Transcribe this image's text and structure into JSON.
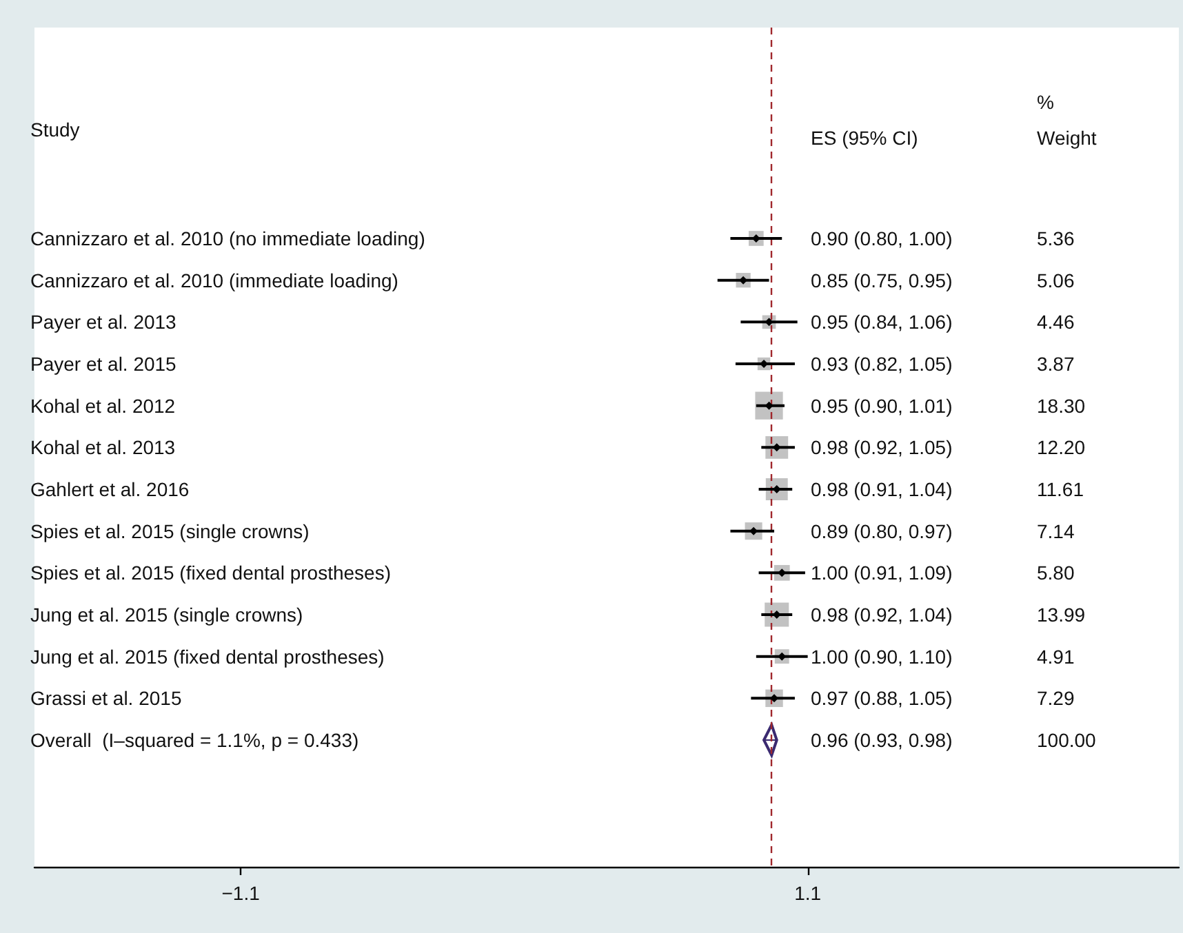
{
  "chart_data": {
    "type": "bubble",
    "orientation": "horizontal",
    "ylabel": "Study",
    "annotations": [
      "ES (95% CI)",
      "%\nWeight",
      "5.36",
      "5.06",
      "4.46",
      "3.87",
      "18.30",
      "12.20",
      "11.61",
      "7.14",
      "5.80",
      "13.99",
      "4.91",
      "7.29",
      "100.00"
    ],
    "categories": [
      "Cannizzaro et al. 2010 (no immediate loading)",
      "Cannizzaro et al. 2010 (immediate loading)",
      "Payer et al. 2013",
      "Payer et al. 2015",
      "Kohal et al. 2012",
      "Kohal et al. 2013",
      "Gahlert et al. 2016",
      "Spies et al. 2015 (single crowns)",
      "Spies et al. 2015 (fixed dental prostheses)",
      "Jung et al. 2015 (single crowns)",
      "Jung et al. 2015 (fixed dental prostheses)",
      "Grassi et al. 2015",
      "Overall  (I–squared = 1.1%, p = 0.433)"
    ],
    "series": [
      {
        "marker": "square",
        "color": "#b3b3b3",
        "values": [
          0.9,
          0.85,
          0.95,
          0.93,
          0.95,
          0.98,
          0.98,
          0.89,
          1.0,
          0.98,
          1.0,
          0.97,
          null
        ],
        "sizes": [
          0.29,
          0.28,
          0.24,
          0.21,
          1,
          0.67,
          0.63,
          0.39,
          0.32,
          0.76,
          0.27,
          0.4,
          null
        ],
        "errors": [
          [
            0.8,
            1.0
          ],
          [
            0.75,
            0.95
          ],
          [
            0.84,
            1.06
          ],
          [
            0.82,
            1.05
          ],
          [
            0.9,
            1.01
          ],
          [
            0.92,
            1.05
          ],
          [
            0.91,
            1.04
          ],
          [
            0.8,
            0.97
          ],
          [
            0.91,
            1.09
          ],
          [
            0.92,
            1.04
          ],
          [
            0.9,
            1.1
          ],
          [
            0.88,
            1.05
          ],
          null
        ],
        "value_labels": [
          "0.90 (0.80, 1.00)",
          "0.85 (0.75, 0.95)",
          "0.95 (0.84, 1.06)",
          "0.93 (0.82, 1.05)",
          "0.95 (0.90, 1.01)",
          "0.98 (0.92, 1.05)",
          "0.98 (0.91, 1.04)",
          "0.89 (0.80, 0.97)",
          "1.00 (0.91, 1.09)",
          "0.98 (0.92, 1.04)",
          "1.00 (0.90, 1.10)",
          "0.97 (0.88, 1.05)",
          null
        ]
      },
      {
        "type": "scatter",
        "marker": "diamond",
        "color": "#3b2a70",
        "values": [
          null,
          null,
          null,
          null,
          null,
          null,
          null,
          null,
          null,
          null,
          null,
          null,
          0.96
        ],
        "errors": [
          null,
          null,
          null,
          null,
          null,
          null,
          null,
          null,
          null,
          null,
          null,
          null,
          [
            0.93,
            0.98
          ]
        ],
        "value_labels": [
          null,
          null,
          null,
          null,
          null,
          null,
          null,
          null,
          null,
          null,
          null,
          null,
          "0.96 (0.93, 0.98)"
        ]
      }
    ],
    "xlim": [
      -1.9,
      2.54
    ],
    "xticks": [
      -1.1,
      1.1
    ],
    "grid": false,
    "ref_lines": [
      {
        "axis": "x",
        "value": 0.96,
        "label": null,
        "color": "#a0282d",
        "line_style": "dashed"
      }
    ]
  }
}
